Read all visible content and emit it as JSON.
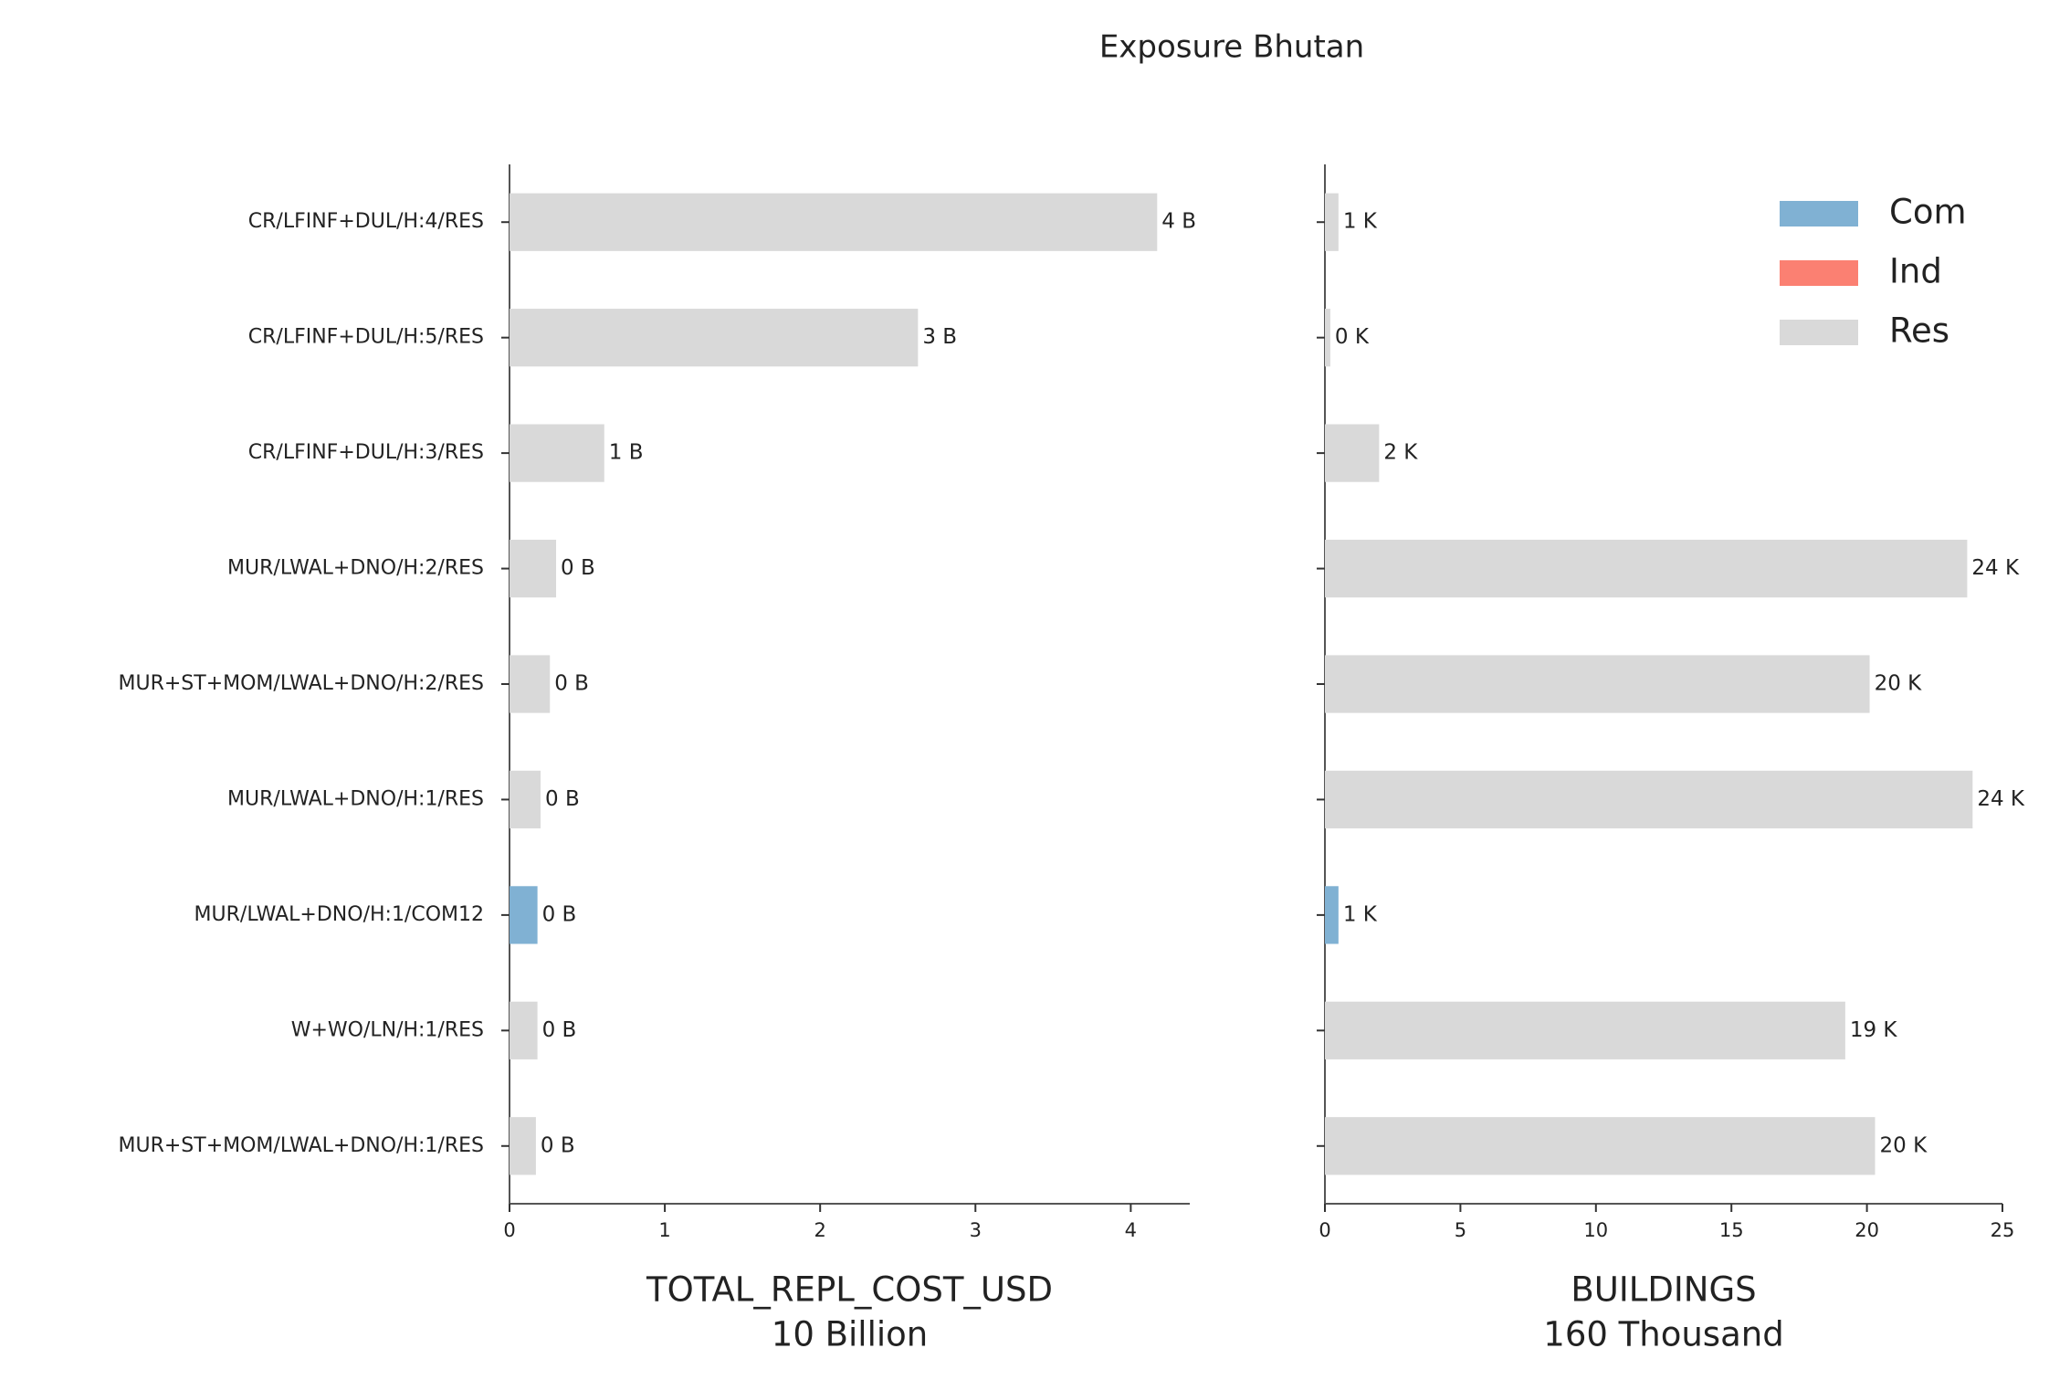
{
  "title": "Exposure Bhutan",
  "chart_data": [
    {
      "type": "barh",
      "categories": [
        "CR/LFINF+DUL/H:4/RES",
        "CR/LFINF+DUL/H:5/RES",
        "CR/LFINF+DUL/H:3/RES",
        "MUR/LWAL+DNO/H:2/RES",
        "MUR+ST+MOM/LWAL+DNO/H:2/RES",
        "MUR/LWAL+DNO/H:1/RES",
        "MUR/LWAL+DNO/H:1/COM12",
        "W+WO/LN/H:1/RES",
        "MUR+ST+MOM/LWAL+DNO/H:1/RES"
      ],
      "series": [
        {
          "name": "Com",
          "color": "#80b1d3",
          "values": [
            null,
            null,
            null,
            null,
            null,
            null,
            0.18,
            null,
            null
          ],
          "value_labels": [
            null,
            null,
            null,
            null,
            null,
            null,
            "0 B",
            null,
            null
          ]
        },
        {
          "name": "Ind",
          "color": "#fb8072",
          "values": [
            null,
            null,
            null,
            null,
            null,
            null,
            null,
            null,
            null
          ]
        },
        {
          "name": "Res",
          "color": "#d9d9d9",
          "values": [
            4.17,
            2.63,
            0.61,
            0.3,
            0.26,
            0.2,
            null,
            0.18,
            0.17
          ],
          "value_labels": [
            "4 B",
            "3 B",
            "1 B",
            "0 B",
            "0 B",
            "0 B",
            null,
            "0 B",
            "0 B"
          ]
        }
      ],
      "xlim": [
        0,
        4.38
      ],
      "xticks": [
        0,
        1,
        2,
        3,
        4
      ],
      "xlabel": "TOTAL_REPL_COST_USD",
      "xunit": "10 Billion"
    },
    {
      "type": "barh",
      "series": [
        {
          "name": "Com",
          "color": "#80b1d3",
          "values": [
            null,
            null,
            null,
            null,
            null,
            null,
            0.5,
            null,
            null
          ],
          "value_labels": [
            null,
            null,
            null,
            null,
            null,
            null,
            "1 K",
            null,
            null
          ]
        },
        {
          "name": "Ind",
          "color": "#fb8072",
          "values": [
            null,
            null,
            null,
            null,
            null,
            null,
            null,
            null,
            null
          ]
        },
        {
          "name": "Res",
          "color": "#d9d9d9",
          "values": [
            0.5,
            0.2,
            2.0,
            23.7,
            20.1,
            23.9,
            null,
            19.2,
            20.3
          ],
          "value_labels": [
            "1 K",
            "0 K",
            "2 K",
            "24 K",
            "20 K",
            "24 K",
            null,
            "19 K",
            "20 K"
          ]
        }
      ],
      "xlim": [
        0,
        25
      ],
      "xticks": [
        0,
        5,
        10,
        15,
        20,
        25
      ],
      "xlabel": "BUILDINGS",
      "xunit": "160 Thousand",
      "legend": "upper right"
    }
  ]
}
